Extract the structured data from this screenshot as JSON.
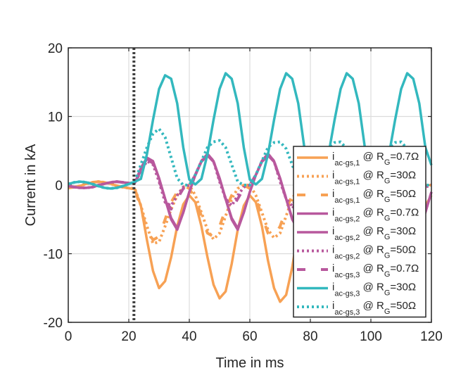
{
  "chart_data": {
    "type": "line",
    "title": "",
    "xlabel": "Time in ms",
    "ylabel": "Current in kA",
    "xlim": [
      0,
      120
    ],
    "ylim": [
      -20,
      20
    ],
    "xticks": [
      0,
      20,
      40,
      60,
      80,
      100,
      120
    ],
    "yticks": [
      20,
      10,
      0,
      -10,
      -20
    ],
    "grid": true,
    "legend_placement": "bottom-right",
    "event_marker": {
      "x": 21.7,
      "color": "#404040",
      "style": "dotted"
    },
    "x": [
      0,
      2,
      4,
      6,
      8,
      10,
      12,
      14,
      16,
      18,
      20,
      22,
      24,
      26,
      28,
      30,
      32,
      34,
      36,
      38,
      40,
      42,
      44,
      46,
      48,
      50,
      52,
      54,
      56,
      58,
      60,
      62,
      64,
      66,
      68,
      70,
      72,
      74,
      76,
      78,
      80,
      82,
      84,
      86,
      88,
      90,
      92,
      94,
      96,
      98,
      100,
      102,
      104,
      106,
      108,
      110,
      112,
      114,
      116,
      118,
      120
    ],
    "series": [
      {
        "name_symbol": "i",
        "name_sub": "ac-gs,1",
        "name_mid": " @ R",
        "name_mid_sub": "G",
        "name_value": "=0.7Ω",
        "color": "#F7A154",
        "style": "solid",
        "values": [
          -0.4,
          -0.3,
          -0.1,
          0.2,
          0.4,
          0.5,
          0.4,
          0.2,
          -0.1,
          -0.3,
          -0.45,
          -0.6,
          -3,
          -8,
          -12.5,
          -15,
          -14,
          -10.5,
          -6,
          -2.8,
          -1.5,
          -2.5,
          -6,
          -10.5,
          -14.5,
          -16.5,
          -15.5,
          -11.5,
          -6.5,
          -3,
          -1.5,
          -2.5,
          -6,
          -11,
          -15,
          -17,
          -16,
          -12,
          -6.5,
          -3,
          -1.5,
          -2.5,
          -6,
          -11,
          -15,
          -17,
          -16,
          -12,
          -6.5,
          -3,
          -1.5,
          -2.5,
          -6,
          -11,
          -15,
          -17,
          -16,
          -12,
          -6.5,
          -3,
          -1.5
        ]
      },
      {
        "name_symbol": "i",
        "name_sub": "ac-gs,1",
        "name_mid": " @ R",
        "name_mid_sub": "G",
        "name_value": "=30Ω",
        "color": "#F7A154",
        "style": "dotted",
        "values": [
          -0.4,
          -0.3,
          -0.1,
          0.2,
          0.4,
          0.5,
          0.4,
          0.2,
          -0.1,
          -0.3,
          -0.45,
          -0.5,
          -3,
          -6,
          -8.5,
          -8.3,
          -6,
          -3.5,
          -1.5,
          -0.3,
          0,
          -1.5,
          -4,
          -6.5,
          -7.9,
          -7,
          -4.5,
          -2,
          -0.5,
          0,
          0,
          -1.5,
          -4,
          -6.5,
          -7.7,
          -7,
          -4.5,
          -2,
          -0.5,
          0,
          0,
          -1.5,
          -4,
          -6.5,
          -7.7,
          -7,
          -4.5,
          -2,
          -0.5,
          0,
          0,
          -1.5,
          -4,
          -6.5,
          -7.7,
          -7,
          -4.5,
          -2,
          -0.5,
          0,
          0
        ]
      },
      {
        "name_symbol": "i",
        "name_sub": "ac-gs,1",
        "name_mid": " @ R",
        "name_mid_sub": "G",
        "name_value": "=50Ω",
        "color": "#F7A154",
        "style": "dashed",
        "values": [
          -0.4,
          -0.3,
          -0.1,
          0.2,
          0.4,
          0.5,
          0.4,
          0.2,
          -0.1,
          -0.3,
          -0.45,
          -0.5,
          -3.5,
          -6.5,
          -8,
          -7.5,
          -5,
          -2.5,
          -1,
          0,
          -0.5,
          -2,
          -4.5,
          -7,
          -7.5,
          -6,
          -3.5,
          -1.5,
          -0.3,
          0,
          -0.5,
          -2,
          -4.5,
          -7,
          -7.5,
          -6,
          -3.5,
          -1.5,
          -0.3,
          0,
          -0.5,
          -2,
          -4.5,
          -7,
          -7.5,
          -6,
          -3.5,
          -1.5,
          -0.3,
          0,
          -0.5,
          -2,
          -4.5,
          -7,
          -7.5,
          -6,
          -3.5,
          -1.5,
          -0.3,
          0,
          -0.5
        ]
      },
      {
        "name_symbol": "i",
        "name_sub": "ac-gs,2",
        "name_mid": " @ R",
        "name_mid_sub": "G",
        "name_value": "=0.7Ω",
        "color": "#B8589D",
        "style": "solid",
        "values": [
          -0.1,
          -0.3,
          -0.4,
          -0.4,
          -0.3,
          0,
          0.2,
          0.4,
          0.5,
          0.4,
          0.3,
          0.3,
          2.5,
          4,
          3.5,
          1,
          -2,
          -5,
          -6.5,
          -4,
          -1,
          1.5,
          3.5,
          4.4,
          3.5,
          1,
          -2,
          -5,
          -6.5,
          -4,
          -1,
          1.5,
          3.5,
          4.6,
          3.5,
          1,
          -2,
          -5,
          -6.5,
          -4,
          -1,
          1.5,
          3.5,
          4.6,
          3.5,
          1,
          -2,
          -5,
          -6.5,
          -4,
          -1,
          1.5,
          3.5,
          4.6,
          3.5,
          1,
          -2,
          -5,
          -6.5,
          -4,
          -1
        ]
      },
      {
        "name_symbol": "i",
        "name_sub": "ac-gs,2",
        "name_mid": " @ R",
        "name_mid_sub": "G",
        "name_value": "=30Ω",
        "color": "#B8589D",
        "style": "solid",
        "values": [
          -0.1,
          -0.3,
          -0.4,
          -0.4,
          -0.3,
          0,
          0.2,
          0.4,
          0.5,
          0.4,
          0.3,
          0.3,
          2.3,
          3.8,
          3.4,
          1,
          -2,
          -4.8,
          -6.3,
          -4,
          -1,
          1.5,
          3.4,
          4.3,
          3.4,
          1,
          -2,
          -4.8,
          -6.3,
          -4,
          -1,
          1.5,
          3.4,
          4.3,
          3.4,
          1,
          -2,
          -4.8,
          -6.3,
          -4,
          -1,
          1.5,
          3.4,
          4.3,
          3.4,
          1,
          -2,
          -4.8,
          -6.3,
          -4,
          -1,
          1.5,
          3.4,
          4.3,
          3.4,
          1,
          -2,
          -4.8,
          -6.3,
          -4,
          -1
        ]
      },
      {
        "name_symbol": "i",
        "name_sub": "ac-gs,2",
        "name_mid": " @ R",
        "name_mid_sub": "G",
        "name_value": "=50Ω",
        "color": "#B8589D",
        "style": "dotted",
        "values": [
          -0.1,
          -0.3,
          -0.4,
          -0.4,
          -0.3,
          0,
          0.2,
          0.4,
          0.5,
          0.4,
          0.3,
          0.3,
          2,
          3.5,
          3,
          0.5,
          -2.5,
          -3,
          -1.5,
          -0.3,
          0,
          1.5,
          3.5,
          4.5,
          3.5,
          0.5,
          -2,
          -3,
          -1.5,
          -0.3,
          0,
          1.5,
          3.5,
          4.5,
          3.5,
          0.5,
          -2,
          -3,
          -1.5,
          -0.3,
          0,
          1.5,
          3.5,
          4.5,
          3.5,
          0.5,
          -2,
          -3,
          -1.5,
          -0.3,
          0,
          1.5,
          3.5,
          4.5,
          3.5,
          0.5,
          -2,
          -3,
          -1.5,
          -0.3,
          0
        ]
      },
      {
        "name_symbol": "i",
        "name_sub": "ac-gs,3",
        "name_mid": " @ R",
        "name_mid_sub": "G",
        "name_value": "=0.7Ω",
        "color": "#B8589D",
        "style": "dashed",
        "values": [
          -0.1,
          -0.3,
          -0.4,
          -0.4,
          -0.3,
          0,
          0.2,
          0.4,
          0.5,
          0.4,
          0.3,
          0.3,
          2.2,
          3.7,
          3.2,
          0.8,
          -2.2,
          -3.5,
          -2,
          -0.5,
          0,
          1.5,
          3.5,
          4.5,
          3.5,
          0.8,
          -2,
          -3.5,
          -2,
          -0.5,
          0,
          1.5,
          3.5,
          4.5,
          3.5,
          0.8,
          -2,
          -3.5,
          -2,
          -0.5,
          0,
          1.5,
          3.5,
          4.5,
          3.5,
          0.8,
          -2,
          -3.5,
          -2,
          -0.5,
          0,
          1.5,
          3.5,
          4.5,
          3.5,
          0.8,
          -2,
          -3.5,
          -2,
          -0.5,
          0
        ]
      },
      {
        "name_symbol": "i",
        "name_sub": "ac-gs,3",
        "name_mid": " @ R",
        "name_mid_sub": "G",
        "name_value": "=30Ω",
        "color": "#33B8BE",
        "style": "solid",
        "values": [
          0.15,
          0.4,
          0.5,
          0.4,
          0.15,
          -0.15,
          -0.4,
          -0.5,
          -0.4,
          -0.15,
          0.15,
          0.5,
          0.9,
          4.5,
          9.5,
          14,
          16,
          15.5,
          11.9,
          5.5,
          0.8,
          0.1,
          0.9,
          4.5,
          9.5,
          14,
          16.3,
          15.5,
          11.9,
          5.5,
          0.8,
          0.1,
          0.9,
          4.5,
          9.5,
          14,
          16.3,
          15.5,
          11.9,
          5.5,
          0.8,
          0.1,
          0.9,
          4.5,
          9.5,
          14,
          16.3,
          15.5,
          11.9,
          5.5,
          0.8,
          0.1,
          0.9,
          4.5,
          9.5,
          14,
          16.3,
          15.5,
          11.9,
          5.5,
          2.9
        ]
      },
      {
        "name_symbol": "i",
        "name_sub": "ac-gs,3",
        "name_mid": " @ R",
        "name_mid_sub": "G",
        "name_value": "=50Ω",
        "color": "#33B8BE",
        "style": "dotted",
        "values": [
          0.15,
          0.4,
          0.5,
          0.4,
          0.15,
          -0.15,
          -0.4,
          -0.5,
          -0.4,
          -0.15,
          0.15,
          0.5,
          3,
          5.5,
          7.5,
          8.2,
          7,
          4,
          1,
          0,
          0,
          1.5,
          3.5,
          5.5,
          6.3,
          6.5,
          5.5,
          3,
          0.5,
          0,
          0,
          1.5,
          3.5,
          5.5,
          6.2,
          6.3,
          5.3,
          3,
          0.5,
          0,
          0,
          1.5,
          3.5,
          5.5,
          6.2,
          6.3,
          5.3,
          3,
          0.5,
          0,
          0,
          1.5,
          3.5,
          5.5,
          6.2,
          6.3,
          5.3,
          3,
          0.5,
          0,
          0
        ]
      }
    ]
  }
}
